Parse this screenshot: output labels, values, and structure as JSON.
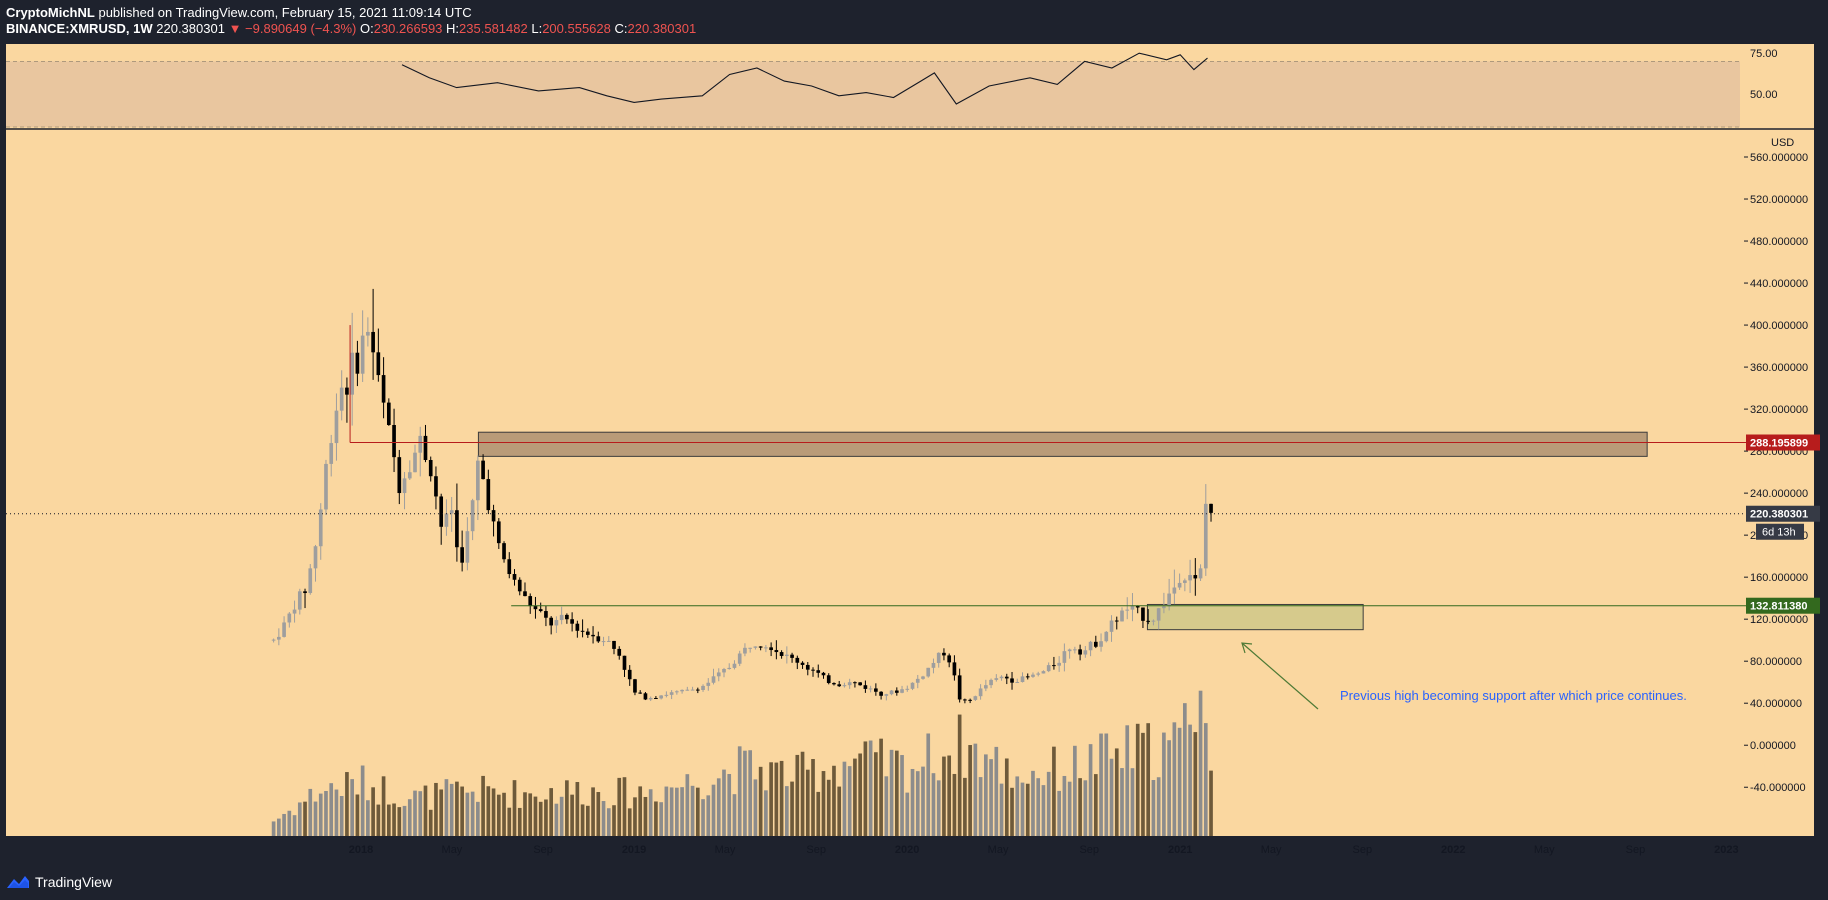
{
  "header": {
    "author": "CryptoMichNL",
    "published_text": "published on TradingView.com, February 15, 2021 11:09:14 UTC",
    "symbol": "BINANCE:XMRUSD, 1W",
    "last": "220.380301",
    "change": "▼ −9.890649 (−4.3%)",
    "o_label": "O:",
    "o_value": "230.266593",
    "h_label": "H:",
    "h_value": "235.581482",
    "l_label": "L:",
    "l_value": "200.555628",
    "c_label": "C:",
    "c_value": "220.380301"
  },
  "footer": {
    "brand": "TradingView",
    "logo_icon": "tradingview-logo-icon"
  },
  "colors": {
    "background": "#fad7a0",
    "frame": "#1e222d",
    "up": "#9e9e9e",
    "down": "#000000",
    "volume_up": "#8c8c8c",
    "volume_down": "#6e5a3a",
    "resistance_line": "#b71c1c",
    "support_line": "#33691e",
    "resistance_zone": "#b99b78",
    "support_zone": "#d6ca8c",
    "annotation": "#2962ff",
    "arrow": "#4e7a36"
  },
  "chart_data": {
    "type": "candlestick",
    "symbol": "BINANCE:XMRUSD",
    "interval": "1W",
    "currency_label": "USD",
    "x_labels": [
      "2018",
      "May",
      "Sep",
      "2019",
      "May",
      "Sep",
      "2020",
      "May",
      "Sep",
      "2021",
      "May",
      "Sep",
      "2022",
      "May",
      "Sep",
      "2023"
    ],
    "x_label_times": [
      2018.0,
      2018.333,
      2018.667,
      2019.0,
      2019.333,
      2019.667,
      2020.0,
      2020.333,
      2020.667,
      2021.0,
      2021.333,
      2021.667,
      2022.0,
      2022.333,
      2022.667,
      2023.0
    ],
    "x_range": [
      2016.7,
      2023.05
    ],
    "y_range": [
      -75,
      580
    ],
    "y_ticks": [
      "560.000000",
      "520.000000",
      "480.000000",
      "440.000000",
      "400.000000",
      "360.000000",
      "320.000000",
      "280.000000",
      "240.000000",
      "200.000000",
      "160.000000",
      "120.000000",
      "80.000000",
      "40.000000",
      "0.000000",
      "-40.000000"
    ],
    "y_tick_values": [
      560,
      520,
      480,
      440,
      400,
      360,
      320,
      280,
      240,
      200,
      160,
      120,
      80,
      40,
      0,
      -40
    ],
    "price_key_points": [
      [
        2017.68,
        100
      ],
      [
        2017.72,
        115
      ],
      [
        2017.76,
        135
      ],
      [
        2017.8,
        150
      ],
      [
        2017.84,
        200
      ],
      [
        2017.88,
        280
      ],
      [
        2017.92,
        340
      ],
      [
        2017.96,
        350
      ],
      [
        2018.0,
        380
      ],
      [
        2018.03,
        400
      ],
      [
        2018.06,
        350
      ],
      [
        2018.1,
        300
      ],
      [
        2018.14,
        250
      ],
      [
        2018.18,
        270
      ],
      [
        2018.22,
        290
      ],
      [
        2018.26,
        260
      ],
      [
        2018.3,
        200
      ],
      [
        2018.33,
        230
      ],
      [
        2018.36,
        170
      ],
      [
        2018.4,
        210
      ],
      [
        2018.43,
        270
      ],
      [
        2018.47,
        230
      ],
      [
        2018.5,
        190
      ],
      [
        2018.55,
        160
      ],
      [
        2018.6,
        140
      ],
      [
        2018.65,
        125
      ],
      [
        2018.7,
        115
      ],
      [
        2018.75,
        120
      ],
      [
        2018.8,
        110
      ],
      [
        2018.85,
        105
      ],
      [
        2018.9,
        100
      ],
      [
        2018.95,
        85
      ],
      [
        2019.0,
        50
      ],
      [
        2019.05,
        45
      ],
      [
        2019.1,
        48
      ],
      [
        2019.15,
        50
      ],
      [
        2019.2,
        52
      ],
      [
        2019.25,
        56
      ],
      [
        2019.3,
        65
      ],
      [
        2019.35,
        75
      ],
      [
        2019.4,
        90
      ],
      [
        2019.45,
        100
      ],
      [
        2019.5,
        95
      ],
      [
        2019.55,
        85
      ],
      [
        2019.6,
        80
      ],
      [
        2019.65,
        72
      ],
      [
        2019.7,
        62
      ],
      [
        2019.75,
        58
      ],
      [
        2019.8,
        60
      ],
      [
        2019.85,
        55
      ],
      [
        2019.9,
        50
      ],
      [
        2019.95,
        50
      ],
      [
        2020.0,
        55
      ],
      [
        2020.05,
        65
      ],
      [
        2020.1,
        80
      ],
      [
        2020.13,
        90
      ],
      [
        2020.16,
        80
      ],
      [
        2020.19,
        45
      ],
      [
        2020.22,
        40
      ],
      [
        2020.25,
        48
      ],
      [
        2020.3,
        60
      ],
      [
        2020.35,
        65
      ],
      [
        2020.4,
        62
      ],
      [
        2020.45,
        65
      ],
      [
        2020.5,
        70
      ],
      [
        2020.55,
        80
      ],
      [
        2020.6,
        95
      ],
      [
        2020.65,
        90
      ],
      [
        2020.7,
        100
      ],
      [
        2020.75,
        115
      ],
      [
        2020.8,
        130
      ],
      [
        2020.85,
        125
      ],
      [
        2020.9,
        120
      ],
      [
        2020.95,
        140
      ],
      [
        2021.0,
        160
      ],
      [
        2021.04,
        165
      ],
      [
        2021.07,
        145
      ],
      [
        2021.09,
        230
      ],
      [
        2021.12,
        220
      ]
    ],
    "levels": [
      {
        "label": "288.195899",
        "value": 288.195899,
        "role": "resistance"
      },
      {
        "label": "132.811380",
        "value": 132.81138,
        "role": "support"
      }
    ],
    "last_price_label": "220.380301",
    "countdown_label": "6d 13h",
    "zones": [
      {
        "name": "resistance-zone",
        "x": [
          2018.43,
          2022.71
        ],
        "y": [
          275,
          298
        ]
      },
      {
        "name": "support-zone",
        "x": [
          2020.88,
          2021.67
        ],
        "y": [
          110,
          134
        ]
      }
    ],
    "annotation": "Previous high becoming support after which price continues.",
    "volume_key_points": [
      [
        2017.68,
        0.1
      ],
      [
        2017.85,
        0.3
      ],
      [
        2018.0,
        0.35
      ],
      [
        2018.2,
        0.25
      ],
      [
        2018.4,
        0.3
      ],
      [
        2018.6,
        0.28
      ],
      [
        2018.8,
        0.3
      ],
      [
        2019.0,
        0.28
      ],
      [
        2019.2,
        0.35
      ],
      [
        2019.4,
        0.45
      ],
      [
        2019.6,
        0.4
      ],
      [
        2019.8,
        0.5
      ],
      [
        2020.0,
        0.45
      ],
      [
        2020.2,
        0.6
      ],
      [
        2020.4,
        0.4
      ],
      [
        2020.6,
        0.45
      ],
      [
        2020.8,
        0.55
      ],
      [
        2021.0,
        0.6
      ],
      [
        2021.05,
        1.0
      ],
      [
        2021.1,
        0.8
      ],
      [
        2021.12,
        0.1
      ]
    ],
    "rsi": {
      "y_ticks": [
        "75.00",
        "50.00"
      ],
      "y_tick_values": [
        75,
        50
      ],
      "range": [
        30,
        80
      ],
      "band": [
        30,
        70
      ],
      "points": [
        [
          2018.15,
          68
        ],
        [
          2018.25,
          60
        ],
        [
          2018.35,
          54
        ],
        [
          2018.5,
          57
        ],
        [
          2018.65,
          52
        ],
        [
          2018.8,
          54
        ],
        [
          2018.9,
          49
        ],
        [
          2019.0,
          45
        ],
        [
          2019.1,
          47
        ],
        [
          2019.25,
          49
        ],
        [
          2019.35,
          62
        ],
        [
          2019.45,
          66
        ],
        [
          2019.55,
          58
        ],
        [
          2019.65,
          55
        ],
        [
          2019.75,
          49
        ],
        [
          2019.85,
          51
        ],
        [
          2019.95,
          48
        ],
        [
          2020.05,
          58
        ],
        [
          2020.1,
          63
        ],
        [
          2020.18,
          44
        ],
        [
          2020.3,
          55
        ],
        [
          2020.45,
          60
        ],
        [
          2020.55,
          56
        ],
        [
          2020.65,
          70
        ],
        [
          2020.75,
          66
        ],
        [
          2020.85,
          75
        ],
        [
          2020.95,
          71
        ],
        [
          2021.0,
          74
        ],
        [
          2021.05,
          65
        ],
        [
          2021.1,
          72
        ]
      ]
    }
  }
}
